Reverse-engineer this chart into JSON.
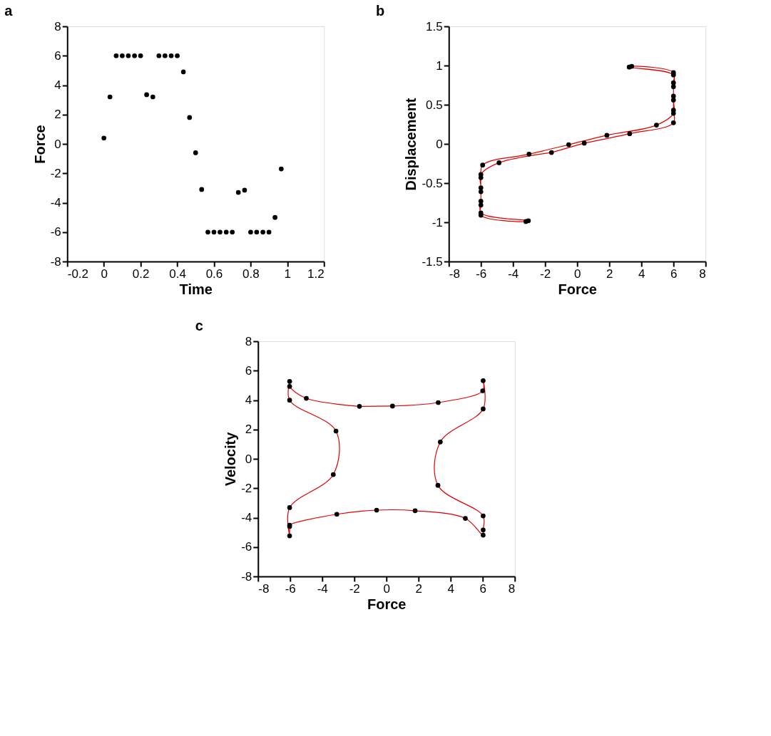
{
  "chart_data": [
    {
      "type": "scatter",
      "title": "a",
      "xlabel": "Time",
      "ylabel": "Force",
      "marker": "circle",
      "grid": false,
      "x": [
        0,
        0.033,
        0.067,
        0.1,
        0.133,
        0.167,
        0.2,
        0.233,
        0.267,
        0.3,
        0.333,
        0.367,
        0.4,
        0.433,
        0.467,
        0.5,
        0.533,
        0.567,
        0.6,
        0.633,
        0.667,
        0.7,
        0.733,
        0.767,
        0.8,
        0.833,
        0.867,
        0.9,
        0.933,
        0.967
      ],
      "series": [
        {
          "color": "#000000",
          "values": [
            0.4,
            3.2,
            6,
            6,
            6,
            6,
            6,
            3.35,
            3.2,
            6,
            6,
            6,
            6,
            4.9,
            1.8,
            -0.6,
            -3.1,
            -6,
            -6,
            -6,
            -6,
            -6,
            -3.3,
            -3.15,
            -6,
            -6,
            -6,
            -6,
            -5,
            -1.7
          ]
        }
      ],
      "xlim": [
        -0.2,
        1.2
      ],
      "xticks": [
        -0.2,
        0,
        0.2,
        0.4,
        0.6,
        0.8,
        1,
        1.2
      ],
      "ylim": [
        -8,
        8
      ],
      "yticks": [
        -8,
        -6,
        -4,
        -2,
        0,
        2,
        4,
        6,
        8
      ]
    },
    {
      "type": "line",
      "title": "b",
      "xlabel": "Force",
      "ylabel": "Displacement",
      "line_style": "solid",
      "grid": false,
      "x": [
        0.44,
        3.27,
        6,
        6,
        6,
        6,
        6,
        3.4,
        3.24,
        6,
        6,
        6,
        6,
        4.94,
        1.85,
        -0.53,
        -3.0,
        -5.89,
        -6,
        -6,
        -6,
        -6,
        -3.2,
        -3.04,
        -6,
        -6,
        -6,
        -6,
        -4.87,
        -1.6
      ],
      "series": [
        {
          "type": "line",
          "marker": "none",
          "color": "#e00000",
          "values": [
            0.01,
            0.13,
            0.27,
            0.43,
            0.61,
            0.78,
            0.91,
            0.99,
            0.98,
            0.88,
            0.73,
            0.56,
            0.39,
            0.24,
            0.11,
            -0.01,
            -0.13,
            -0.27,
            -0.43,
            -0.61,
            -0.78,
            -0.91,
            -0.99,
            -0.98,
            -0.88,
            -0.73,
            -0.56,
            -0.39,
            -0.24,
            -0.11
          ]
        },
        {
          "type": "line",
          "marker": "none",
          "color": "#e00000",
          "x": [
            -1.6,
            0.44
          ],
          "values": [
            -0.11,
            0.01
          ]
        },
        {
          "type": "scatter",
          "marker": "circle",
          "color": "#000000",
          "values": [
            0.01,
            0.13,
            0.27,
            0.43,
            0.61,
            0.78,
            0.91,
            0.99,
            0.98,
            0.88,
            0.73,
            0.56,
            0.39,
            0.24,
            0.11,
            -0.01,
            -0.13,
            -0.27,
            -0.43,
            -0.61,
            -0.78,
            -0.91,
            -0.99,
            -0.98,
            -0.88,
            -0.73,
            -0.56,
            -0.39,
            -0.24,
            -0.11
          ]
        }
      ],
      "xlim": [
        -8,
        8
      ],
      "xticks": [
        -8,
        -6,
        -4,
        -2,
        0,
        2,
        4,
        6,
        8
      ],
      "ylim": [
        -1.5,
        1.5
      ],
      "yticks": [
        -1.5,
        -1,
        -0.5,
        0,
        0.5,
        1,
        1.5
      ]
    },
    {
      "type": "line",
      "title": "c",
      "xlabel": "Force",
      "ylabel": "Velocity",
      "line_style": "solid",
      "grid": false,
      "x": [
        0.38,
        3.23,
        6,
        6.03,
        6.03,
        3.36,
        3.21,
        6.03,
        6.03,
        6.03,
        4.92,
        1.79,
        -0.61,
        -3.09,
        -6.03,
        -6.03,
        -6.03,
        -6.03,
        -3.31,
        -3.14,
        -6.03,
        -6.03,
        -6.03,
        -4.99,
        -1.68
      ],
      "series": [
        {
          "type": "line",
          "marker": "none",
          "color": "#e00000",
          "values": [
            3.59,
            3.83,
            4.63,
            5.32,
            3.4,
            1.15,
            -1.8,
            -3.88,
            -4.84,
            -5.19,
            -4.05,
            -3.53,
            -3.49,
            -3.77,
            -4.51,
            -4.6,
            -5.24,
            -3.32,
            -1.07,
            1.89,
            3.99,
            5.27,
            4.93,
            4.12,
            3.57
          ]
        },
        {
          "type": "line",
          "marker": "none",
          "color": "#e00000",
          "x": [
            -1.68,
            0.38
          ],
          "values": [
            3.57,
            3.59
          ]
        },
        {
          "type": "scatter",
          "marker": "circle",
          "color": "#000000",
          "values": [
            3.59,
            3.83,
            4.63,
            5.32,
            3.4,
            1.15,
            -1.8,
            -3.88,
            -4.84,
            -5.19,
            -4.05,
            -3.53,
            -3.49,
            -3.77,
            -4.51,
            -4.6,
            -5.24,
            -3.32,
            -1.07,
            1.89,
            3.99,
            5.27,
            4.93,
            4.12,
            3.57
          ]
        }
      ],
      "xlim": [
        -8,
        8
      ],
      "xticks": [
        -8,
        -6,
        -4,
        -2,
        0,
        2,
        4,
        6,
        8
      ],
      "ylim": [
        -8,
        8
      ],
      "yticks": [
        -8,
        -6,
        -4,
        -2,
        0,
        2,
        4,
        6,
        8
      ]
    }
  ]
}
